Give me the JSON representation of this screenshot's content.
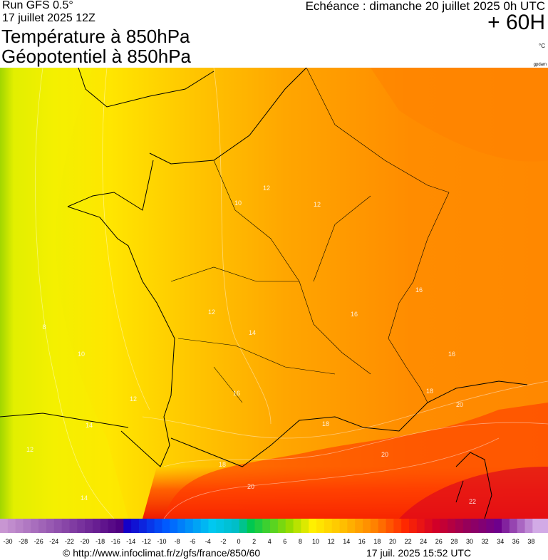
{
  "header": {
    "run": "Run GFS 0.5°",
    "date": "17 juillet 2025 12Z",
    "title1": "Température à 850hPa",
    "title2": "Géopotentiel à 850hPa",
    "echeance": "Echéance : dimanche 20 juillet 2025 0h UTC",
    "lead": "+ 60H",
    "unit": "°C",
    "credit_small": "gpdam"
  },
  "map": {
    "contour_labels": [
      "12",
      "10",
      "12",
      "12",
      "14",
      "16",
      "16",
      "16",
      "16",
      "18",
      "20",
      "18",
      "18",
      "20",
      "20",
      "22",
      "8",
      "10",
      "12",
      "14",
      "12",
      "14"
    ]
  },
  "legend": {
    "labels": [
      "-30",
      "-28",
      "-26",
      "-24",
      "-22",
      "-20",
      "-18",
      "-16",
      "-14",
      "-12",
      "-10",
      "-8",
      "-6",
      "-4",
      "-2",
      "0",
      "2",
      "4",
      "6",
      "8",
      "10",
      "12",
      "14",
      "16",
      "18",
      "20",
      "22",
      "24",
      "26",
      "28",
      "30",
      "32",
      "34",
      "36",
      "38"
    ]
  },
  "footer": {
    "url": "© http://www.infoclimat.fr/z/gfs/france/850/60",
    "timestamp": "17 juil. 2025 15:52 UTC"
  }
}
